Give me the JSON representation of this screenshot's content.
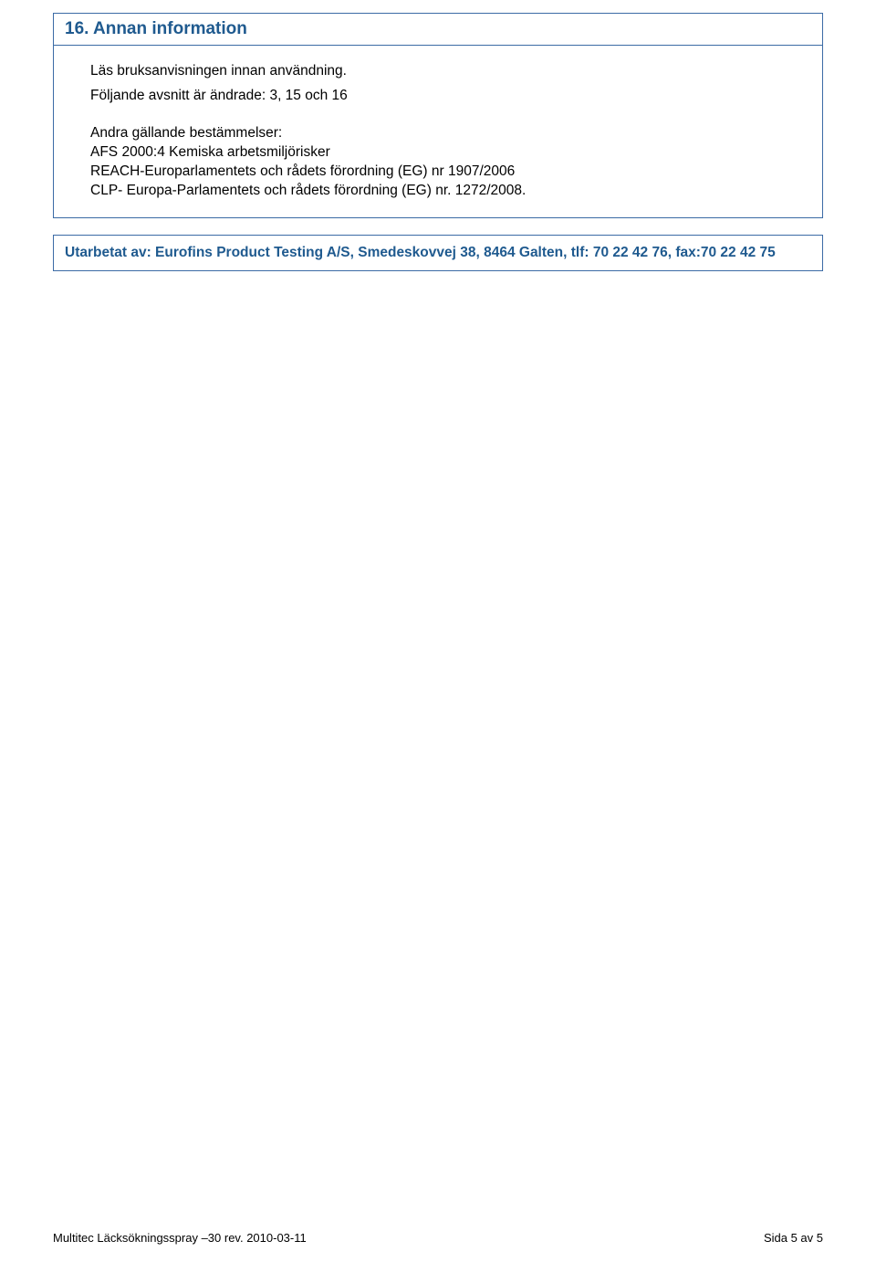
{
  "colors": {
    "border": "#3b6ba5",
    "heading": "#1f5a8f",
    "text": "#000000",
    "background": "#ffffff"
  },
  "section": {
    "number_title": "16. Annan information",
    "line1": "Läs bruksanvisningen innan användning.",
    "line2": "Följande avsnitt är ändrade: 3, 15 och 16",
    "line3": "Andra gällande bestämmelser:",
    "line4": "AFS 2000:4 Kemiska arbetsmiljörisker",
    "line5": "REACH-Europarlamentets och rådets förordning (EG) nr 1907/2006",
    "line6": "CLP- Europa-Parlamentets och rådets förordning (EG) nr. 1272/2008."
  },
  "prepared_by": "Utarbetat av: Eurofins Product Testing A/S, Smedeskovvej 38, 8464 Galten, tlf: 70 22 42 76, fax:70 22 42 75",
  "footer": {
    "left": "Multitec Läcksökningsspray –30 rev. 2010-03-11",
    "right": "Sida 5 av 5"
  },
  "typography": {
    "heading_fontsize": 19,
    "body_fontsize": 15.5,
    "footer_fontsize": 13,
    "font_family": "Arial"
  }
}
